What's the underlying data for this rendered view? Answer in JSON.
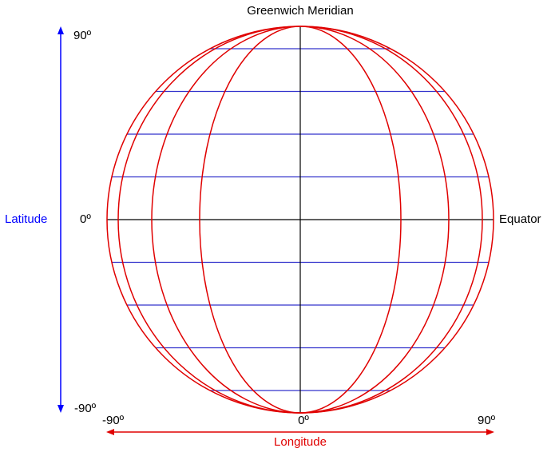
{
  "title": "Greenwich Meridian",
  "latitude": {
    "label": "Latitude",
    "top": "90º",
    "middle": "0º",
    "bottom": "-90º"
  },
  "equator": "Equator",
  "longitude": {
    "label": "Longitude",
    "left": "-90º",
    "middle": "0º",
    "right": "90º"
  }
}
